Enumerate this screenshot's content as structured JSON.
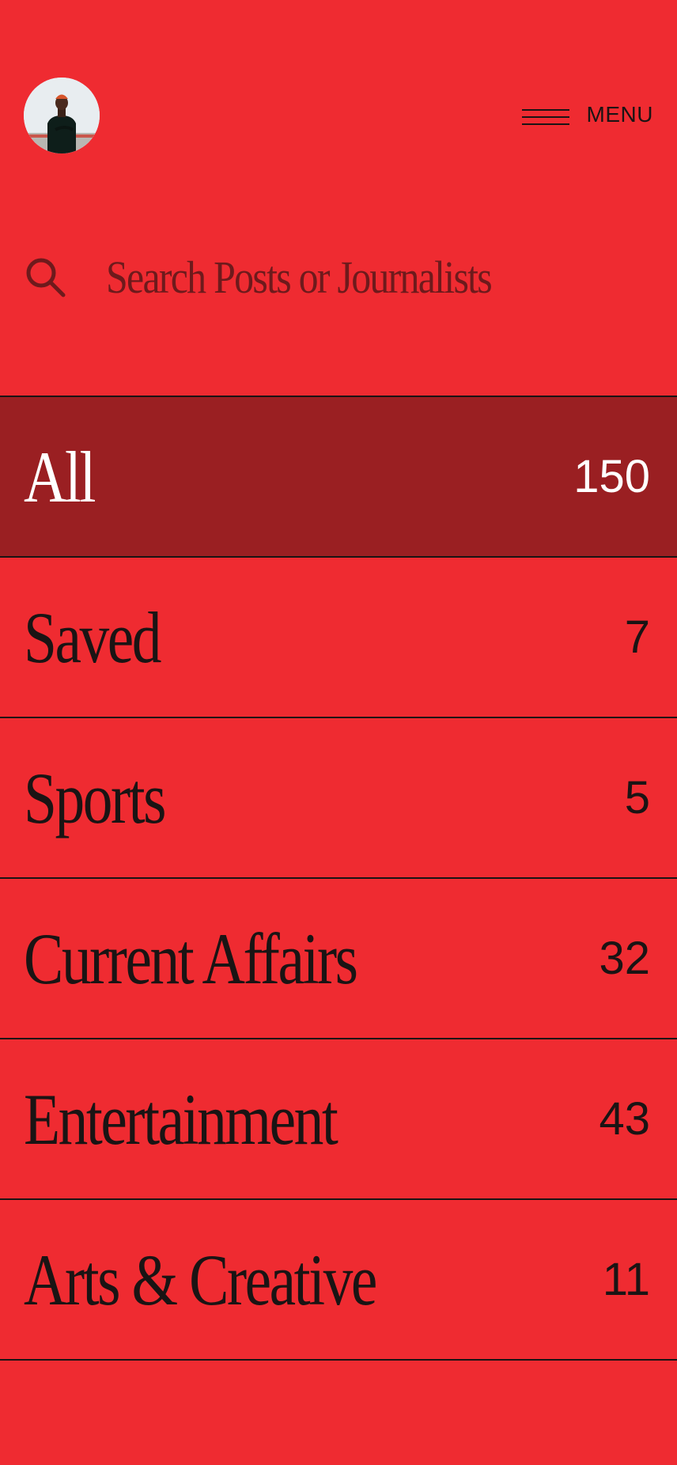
{
  "header": {
    "menu_label": "MENU",
    "avatar_icon": "user-avatar-photo",
    "menu_icon": "hamburger-icon"
  },
  "search": {
    "placeholder": "Search Posts or Journalists",
    "icon": "search-icon"
  },
  "categories": [
    {
      "label": "All",
      "count": "150",
      "active": true
    },
    {
      "label": "Saved",
      "count": "7",
      "active": false
    },
    {
      "label": "Sports",
      "count": "5",
      "active": false
    },
    {
      "label": "Current Affairs",
      "count": "32",
      "active": false
    },
    {
      "label": "Entertainment",
      "count": "43",
      "active": false
    },
    {
      "label": "Arts & Creative",
      "count": "11",
      "active": false
    }
  ],
  "colors": {
    "background": "#EF2B31",
    "active_row": "#9A1F22",
    "text_dark": "#1A1414",
    "placeholder": "#6E1A1C"
  }
}
